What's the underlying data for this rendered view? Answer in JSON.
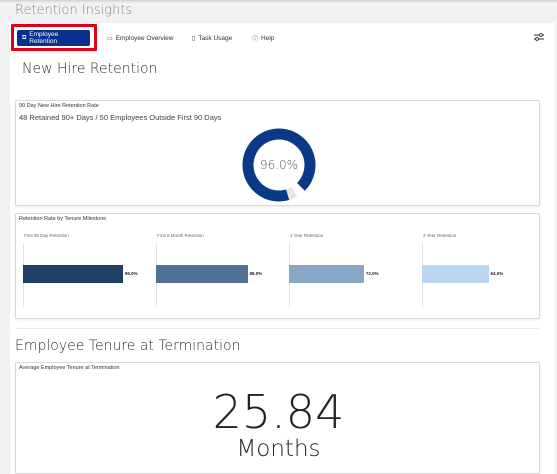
{
  "app": {
    "title": "Retention Insights"
  },
  "nav": {
    "tabs": [
      {
        "label": "Employee Retention",
        "icon": "people-icon",
        "glyph": "⧉",
        "active": true
      },
      {
        "label": "Employee Overview",
        "icon": "card-icon",
        "glyph": "▭",
        "active": false
      },
      {
        "label": "Task Usage",
        "icon": "clipboard-icon",
        "glyph": "▯",
        "active": false
      },
      {
        "label": "Help",
        "icon": "help-icon",
        "glyph": "ⓘ",
        "active": false
      }
    ],
    "filter_icon": "sliders-icon"
  },
  "new_hire": {
    "section_title": "New Hire Retention",
    "rate_card": {
      "label": "90 Day New Hire Retention Rate",
      "subtitle": "48 Retained 90+ Days / 50 Employees Outside First 90 Days",
      "value_text": "96.0%",
      "value_fraction": 0.96,
      "fill_color": "#0a3a86",
      "track_color": "#e6e6e6"
    },
    "milestone_card": {
      "label": "Retention Rate by Tenure Milestone",
      "max": 100
    }
  },
  "chart_data": {
    "type": "bar",
    "title": "Retention Rate by Tenure Milestone",
    "categories": [
      "First 90 Day Retention",
      "First 6 Month Retention",
      "1 Year Retention",
      "2 Year Retention"
    ],
    "values": [
      96.0,
      88.0,
      72.0,
      64.0
    ],
    "value_labels": [
      "96.0%",
      "88.0%",
      "72.0%",
      "64.0%"
    ],
    "colors": [
      "#1f3f66",
      "#4f7196",
      "#88a7c7",
      "#b9d6f3"
    ],
    "xlim": [
      0,
      100
    ],
    "orientation": "horizontal",
    "grid": false,
    "legend": "none"
  },
  "tenure": {
    "section_title": "Employee Tenure at Termination",
    "card_label": "Average Employee Tenure at Termination",
    "value": "25.84",
    "unit": "Months"
  }
}
